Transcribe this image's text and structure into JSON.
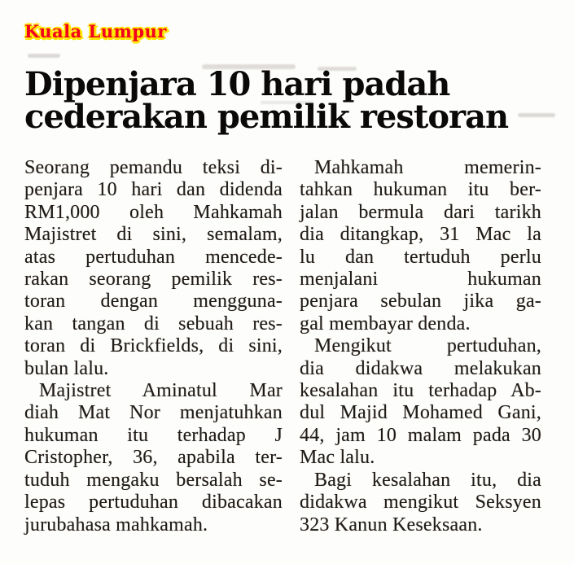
{
  "dateline": {
    "label": "Kuala Lumpur"
  },
  "headline": {
    "line1": "Dipenjara 10 hari padah",
    "line2": "cederakan pemilik restoran"
  },
  "colors": {
    "dateline_red": "#f2001e",
    "dateline_halo": "#ffe600",
    "headline_ink": "#0b0908",
    "body_ink": "#201b16",
    "paper": "#fdfdfb"
  },
  "article": {
    "left_column": {
      "para1": [
        "Seorang pemandu teksi di-",
        "penjara 10 hari dan didenda",
        "RM1,000 oleh Mahkamah",
        "Majistret di sini, semalam,",
        "atas pertuduhan mencede-",
        "rakan seorang pemilik res-",
        "toran dengan mengguna-",
        "kan tangan di sebuah res-",
        "toran di Brickfields, di sini,",
        "bulan lalu."
      ],
      "para2": [
        "Majistret Aminatul Mar",
        "diah Mat Nor menjatuhkan",
        "hukuman itu terhadap J",
        "Cristopher, 36, apabila ter-",
        "tuduh mengaku bersalah se-",
        "lepas pertuduhan dibacakan",
        "jurubahasa mahkamah."
      ]
    },
    "right_column": {
      "para1": [
        "Mahkamah memerin-",
        "tahkan hukuman itu ber-",
        "jalan bermula dari tarikh",
        "dia ditangkap, 31 Mac la",
        "lu dan tertuduh perlu",
        "menjalani hukuman",
        "penjara sebulan jika ga-",
        "gal membayar denda."
      ],
      "para2": [
        "Mengikut pertuduhan,",
        "dia didakwa melakukan",
        "kesalahan itu terhadap Ab-",
        "dul Majid Mohamed Gani,",
        "44, jam 10 malam pada 30",
        "Mac lalu."
      ],
      "para3": [
        "Bagi kesalahan itu, dia",
        "didakwa mengikut Seksyen",
        "323 Kanun Keseksaan."
      ]
    }
  }
}
